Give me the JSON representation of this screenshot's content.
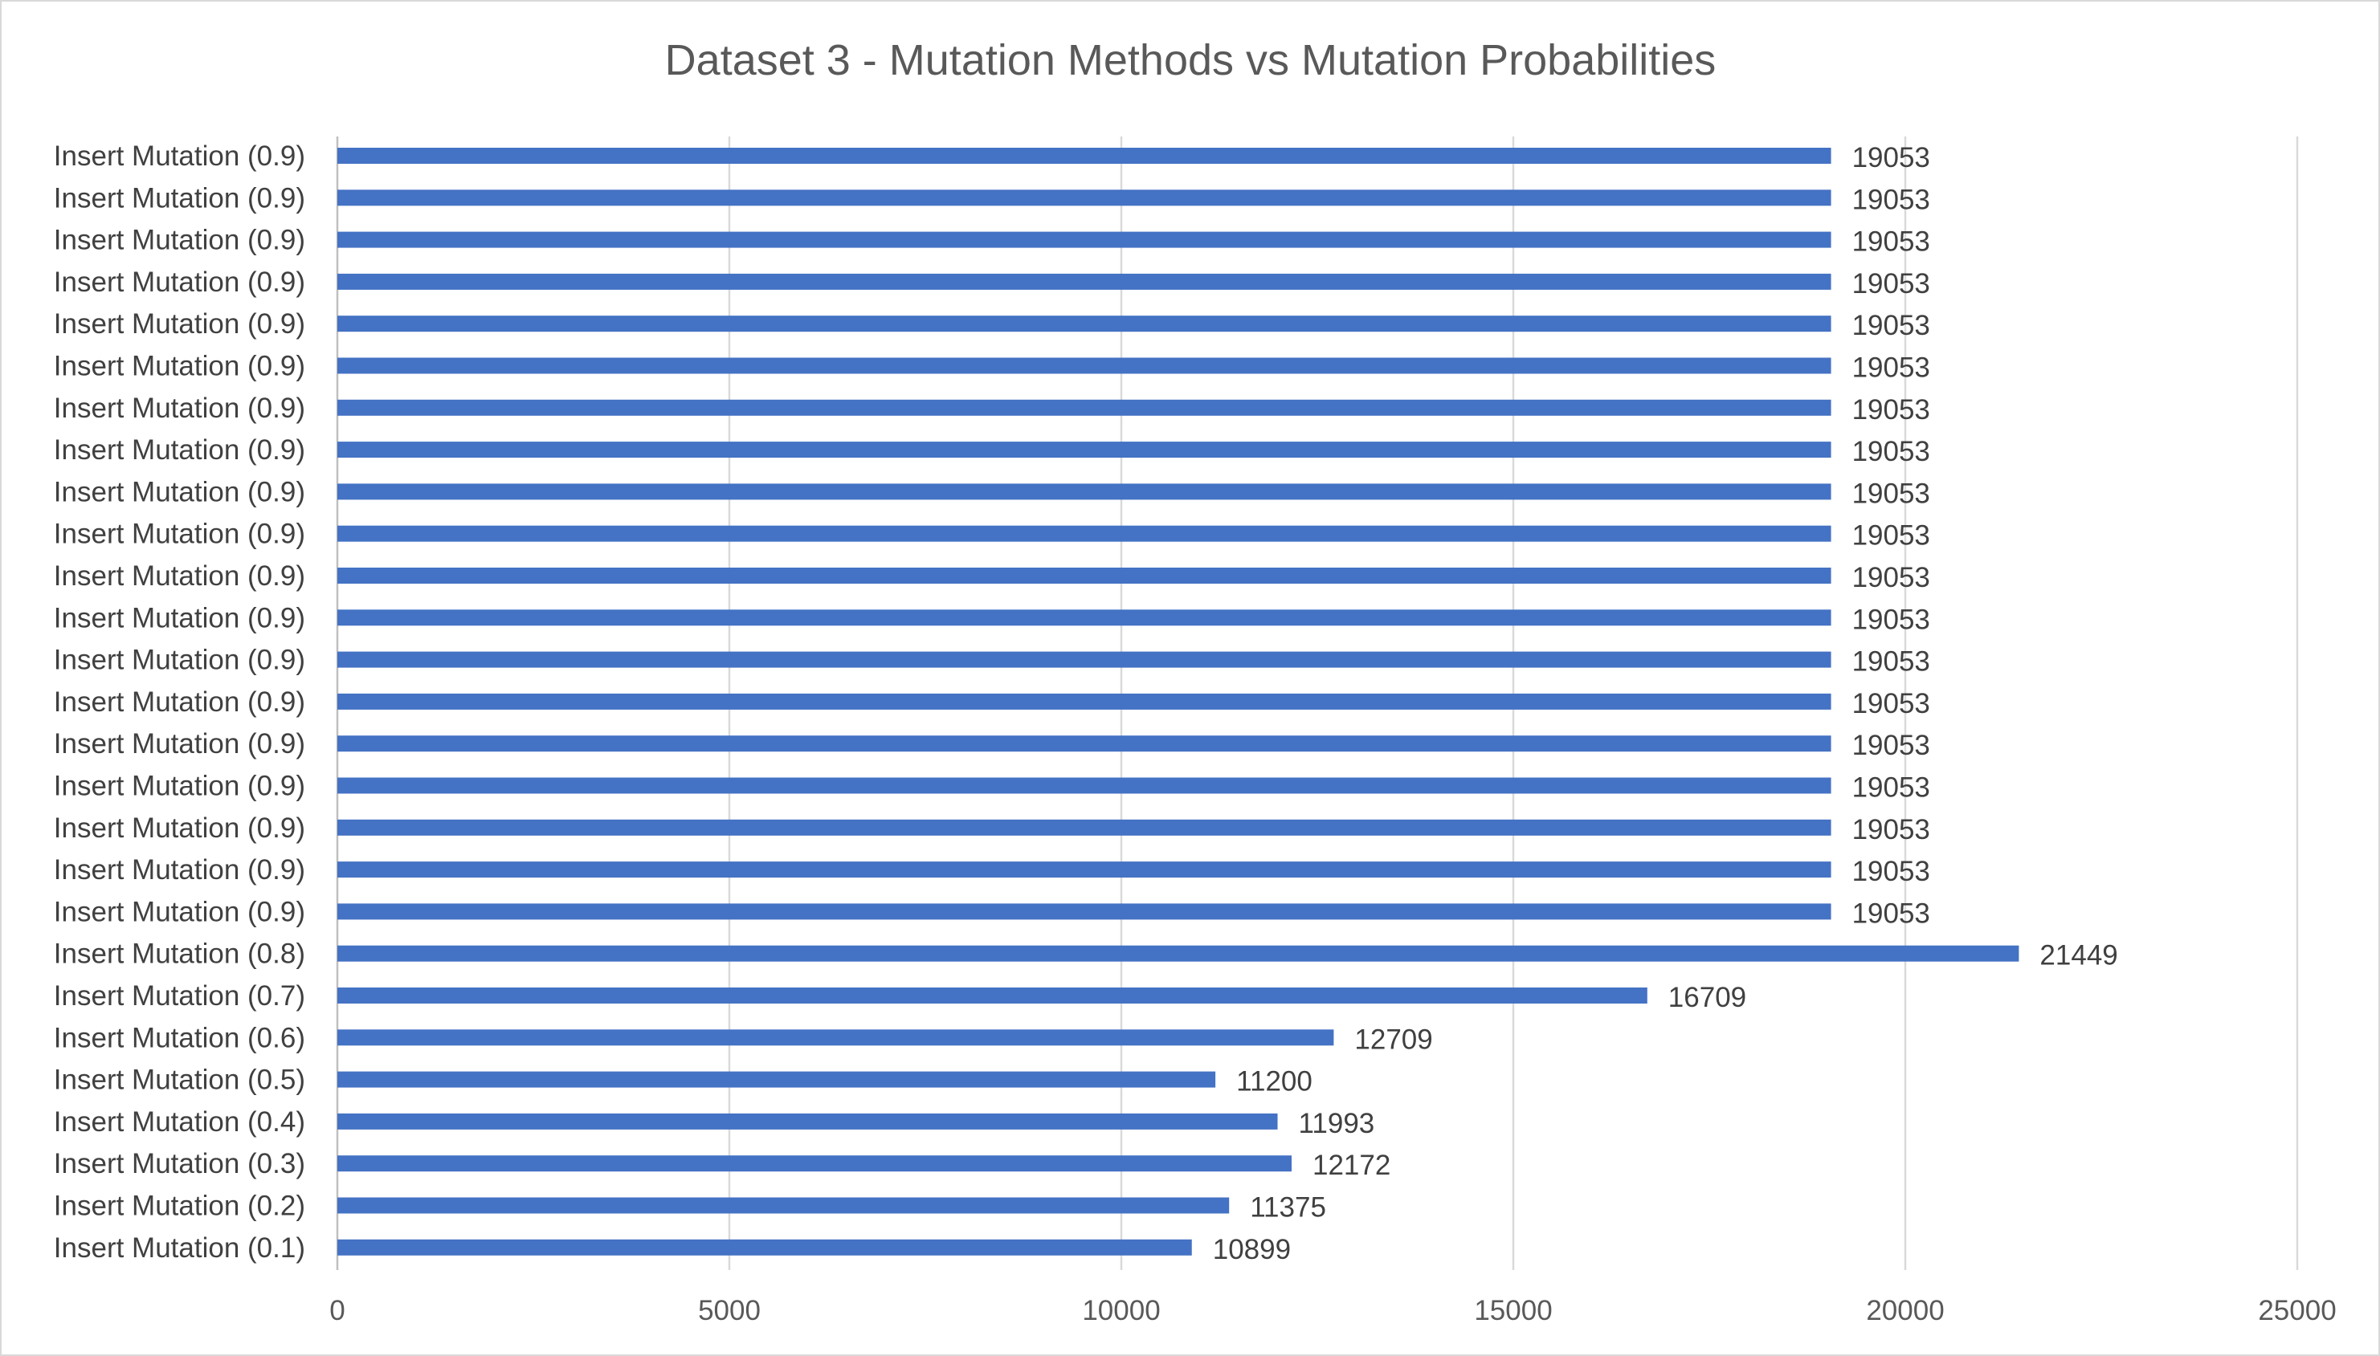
{
  "chart_data": {
    "type": "bar",
    "orientation": "horizontal",
    "title": "Dataset 3 - Mutation Methods vs Mutation Probabilities",
    "xlabel": "",
    "ylabel": "",
    "xlim": [
      0,
      25000
    ],
    "x_ticks": [
      "0",
      "5000",
      "10000",
      "15000",
      "20000",
      "25000"
    ],
    "grid": true,
    "legend": "none",
    "bar_color": "#4472c4",
    "categories": [
      "Insert Mutation (0.9)",
      "Insert Mutation (0.9)",
      "Insert Mutation (0.9)",
      "Insert Mutation (0.9)",
      "Insert Mutation (0.9)",
      "Insert Mutation (0.9)",
      "Insert Mutation (0.9)",
      "Insert Mutation (0.9)",
      "Insert Mutation (0.9)",
      "Insert Mutation (0.9)",
      "Insert Mutation (0.9)",
      "Insert Mutation (0.9)",
      "Insert Mutation (0.9)",
      "Insert Mutation (0.9)",
      "Insert Mutation (0.9)",
      "Insert Mutation (0.9)",
      "Insert Mutation (0.9)",
      "Insert Mutation (0.9)",
      "Insert Mutation (0.9)",
      "Insert Mutation (0.8)",
      "Insert Mutation (0.7)",
      "Insert Mutation (0.6)",
      "Insert Mutation (0.5)",
      "Insert Mutation (0.4)",
      "Insert Mutation (0.3)",
      "Insert Mutation (0.2)",
      "Insert Mutation (0.1)"
    ],
    "values": [
      19053,
      19053,
      19053,
      19053,
      19053,
      19053,
      19053,
      19053,
      19053,
      19053,
      19053,
      19053,
      19053,
      19053,
      19053,
      19053,
      19053,
      19053,
      19053,
      21449,
      16709,
      12709,
      11200,
      11993,
      12172,
      11375,
      10899
    ]
  }
}
